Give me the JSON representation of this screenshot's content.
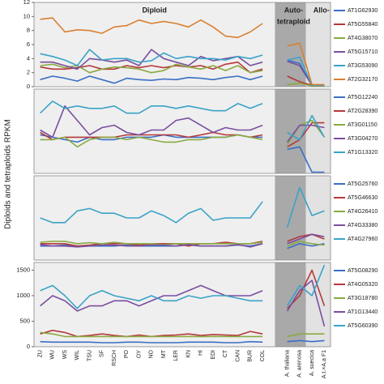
{
  "shared": {
    "ylabel": "Diploids and tetraploids RPKM",
    "categories": [
      "ZU",
      "WU",
      "WS",
      "WIL",
      "TSU",
      "SF",
      "RSCH",
      "PO",
      "OY",
      "NO",
      "MT",
      "LER",
      "KN",
      "HI",
      "EDI",
      "CT",
      "CAN",
      "BUR",
      "COL",
      null,
      "A. thaliana",
      "A. arenosa",
      "A. suecica",
      "A.t.×A.a F1"
    ],
    "regions": {
      "diploid": "Diploid",
      "auto": [
        "Auto-",
        "tetraploid"
      ],
      "allo": "Allo-"
    }
  },
  "chart_data": [
    {
      "type": "line",
      "ylim": [
        0,
        12
      ],
      "yticks": [
        0,
        2,
        4,
        6,
        8,
        10,
        12
      ],
      "series": [
        {
          "name": "AT1G62930",
          "color": "#3a6fc4",
          "values": [
            1.0,
            1.5,
            1.2,
            0.8,
            1.5,
            1.0,
            0.5,
            1.2,
            1.0,
            0.9,
            1.1,
            1.0,
            1.3,
            1.2,
            1.0,
            1.3,
            1.5,
            1.0,
            1.5,
            null,
            3.8,
            3.3,
            0.2,
            0.2
          ]
        },
        {
          "name": "AT5G55840",
          "color": "#b5383a",
          "values": [
            2.8,
            2.5,
            2.5,
            2.7,
            3.0,
            2.5,
            2.5,
            3.0,
            2.7,
            3.0,
            2.7,
            3.0,
            2.8,
            3.0,
            2.5,
            3.2,
            3.5,
            2.0,
            2.5,
            null,
            1.5,
            0.7,
            0.2,
            0.2
          ]
        },
        {
          "name": "AT4G38070",
          "color": "#8aaa42",
          "values": [
            3.0,
            3.2,
            2.7,
            3.0,
            2.0,
            2.5,
            2.8,
            2.7,
            2.5,
            2.0,
            2.3,
            3.2,
            2.8,
            2.5,
            3.0,
            2.3,
            3.0,
            2.0,
            2.3,
            null,
            0.3,
            0.5,
            0.1,
            0.1
          ]
        },
        {
          "name": "AT5G15710",
          "color": "#7a4ea0",
          "values": [
            3.5,
            3.5,
            3.0,
            2.5,
            4.0,
            3.8,
            3.5,
            3.8,
            3.0,
            5.3,
            4.0,
            3.5,
            3.0,
            4.3,
            3.7,
            4.0,
            4.3,
            3.0,
            3.5,
            null,
            3.6,
            3.0,
            0.2,
            0.2
          ]
        },
        {
          "name": "AT3G53090",
          "color": "#3aa3c7",
          "values": [
            4.7,
            4.3,
            3.8,
            3.0,
            5.3,
            3.8,
            4.0,
            4.0,
            3.5,
            3.7,
            4.8,
            4.0,
            4.3,
            4.0,
            4.0,
            3.8,
            4.3,
            4.0,
            4.5,
            null,
            3.8,
            4.2,
            0.2,
            0.2
          ]
        },
        {
          "name": "AT2G32170",
          "color": "#d98030",
          "values": [
            9.6,
            9.8,
            7.8,
            8.1,
            8.0,
            7.6,
            8.5,
            8.7,
            9.5,
            9.0,
            9.3,
            9.0,
            8.5,
            9.5,
            8.5,
            7.2,
            7.0,
            7.8,
            9.0,
            null,
            5.8,
            6.2,
            0.3,
            0.3
          ]
        }
      ]
    },
    {
      "type": "line",
      "ylim": [
        0,
        35
      ],
      "series": [
        {
          "name": "AT5G12240",
          "color": "#3a6fc4",
          "values": [
            16,
            15,
            14,
            13,
            15,
            14,
            14,
            15,
            15,
            15,
            16,
            15,
            15,
            15,
            15,
            15,
            16,
            15,
            15,
            null,
            10,
            11,
            0.5,
            0.5
          ]
        },
        {
          "name": "AT2G28390",
          "color": "#b5383a",
          "values": [
            17,
            14,
            15,
            15,
            15,
            15,
            15,
            16,
            16,
            16,
            16,
            16,
            15,
            16,
            17,
            16,
            16,
            15,
            16,
            null,
            11,
            14,
            21,
            21
          ]
        },
        {
          "name": "AT3G01150",
          "color": "#8aaa42",
          "values": [
            14,
            14,
            15,
            11,
            14,
            15,
            15,
            14,
            15,
            14,
            13,
            13,
            14,
            14,
            15,
            15,
            16,
            15,
            14,
            null,
            12,
            20,
            22,
            15
          ]
        },
        {
          "name": "AT3G04270",
          "color": "#7a4ea0",
          "values": [
            18,
            15,
            28,
            22,
            16,
            19,
            20,
            17,
            16,
            18,
            18,
            22,
            23,
            20,
            17,
            19,
            18,
            18,
            20,
            null,
            13,
            20,
            20,
            19
          ]
        },
        {
          "name": "AT1G13320",
          "color": "#3aa3c7",
          "values": [
            25,
            30,
            27,
            28,
            27,
            27,
            28,
            25,
            25,
            28,
            28,
            27,
            28,
            27,
            26,
            26,
            29,
            27,
            29,
            null,
            17,
            14,
            24,
            15
          ]
        }
      ]
    },
    {
      "type": "line",
      "ylim": [
        0,
        180
      ],
      "series": [
        {
          "name": "AT5G25760",
          "color": "#3a6fc4",
          "values": [
            30,
            30,
            32,
            30,
            30,
            30,
            30,
            32,
            30,
            30,
            30,
            30,
            32,
            30,
            30,
            30,
            32,
            30,
            35,
            null,
            25,
            35,
            30,
            35
          ]
        },
        {
          "name": "AT5G46630",
          "color": "#b5383a",
          "values": [
            35,
            35,
            35,
            30,
            32,
            35,
            35,
            35,
            32,
            35,
            35,
            35,
            30,
            35,
            35,
            38,
            35,
            35,
            40,
            null,
            40,
            50,
            55,
            45
          ]
        },
        {
          "name": "AT4G26410",
          "color": "#8aaa42",
          "values": [
            38,
            40,
            40,
            35,
            37,
            35,
            38,
            35,
            35,
            35,
            33,
            35,
            35,
            35,
            35,
            35,
            35,
            35,
            38,
            null,
            30,
            40,
            35,
            32
          ]
        },
        {
          "name": "AT4G33380",
          "color": "#7a4ea0",
          "values": [
            33,
            30,
            30,
            28,
            30,
            32,
            32,
            30,
            30,
            32,
            32,
            30,
            33,
            30,
            30,
            30,
            33,
            28,
            35,
            null,
            35,
            45,
            55,
            50
          ]
        },
        {
          "name": "AT4G27960",
          "color": "#3aa3c7",
          "values": [
            90,
            80,
            80,
            105,
            110,
            100,
            100,
            90,
            90,
            105,
            95,
            80,
            100,
            110,
            85,
            90,
            90,
            90,
            125,
            null,
            70,
            155,
            95,
            105
          ]
        }
      ]
    },
    {
      "type": "line",
      "ylim": [
        0,
        1650
      ],
      "yticks": [
        0,
        500,
        1000,
        1500
      ],
      "series": [
        {
          "name": "AT5G08290",
          "color": "#3a6fc4",
          "values": [
            100,
            90,
            90,
            90,
            90,
            80,
            80,
            90,
            90,
            80,
            80,
            80,
            90,
            90,
            90,
            80,
            80,
            100,
            90,
            null,
            100,
            120,
            100,
            120
          ]
        },
        {
          "name": "AT4G05320",
          "color": "#b5383a",
          "values": [
            250,
            320,
            280,
            200,
            220,
            250,
            220,
            200,
            230,
            200,
            220,
            230,
            250,
            220,
            240,
            230,
            220,
            300,
            250,
            null,
            750,
            1000,
            1500,
            800
          ]
        },
        {
          "name": "AT3G18780",
          "color": "#8aaa42",
          "values": [
            280,
            250,
            200,
            200,
            200,
            200,
            200,
            200,
            200,
            200,
            200,
            200,
            200,
            200,
            200,
            200,
            200,
            200,
            200,
            null,
            200,
            250,
            250,
            250
          ]
        },
        {
          "name": "AT1G13440",
          "color": "#7a4ea0",
          "values": [
            800,
            1000,
            900,
            700,
            800,
            800,
            900,
            900,
            800,
            900,
            1000,
            1000,
            1100,
            1200,
            1100,
            1000,
            1000,
            1000,
            1100,
            null,
            700,
            1100,
            1300,
            400
          ]
        },
        {
          "name": "AT5G60390",
          "color": "#3aa3c7",
          "values": [
            1100,
            1200,
            1000,
            750,
            1000,
            1100,
            1000,
            950,
            900,
            1000,
            900,
            900,
            1000,
            950,
            1000,
            1000,
            950,
            900,
            900,
            null,
            800,
            1200,
            1000,
            1600
          ]
        }
      ]
    }
  ]
}
